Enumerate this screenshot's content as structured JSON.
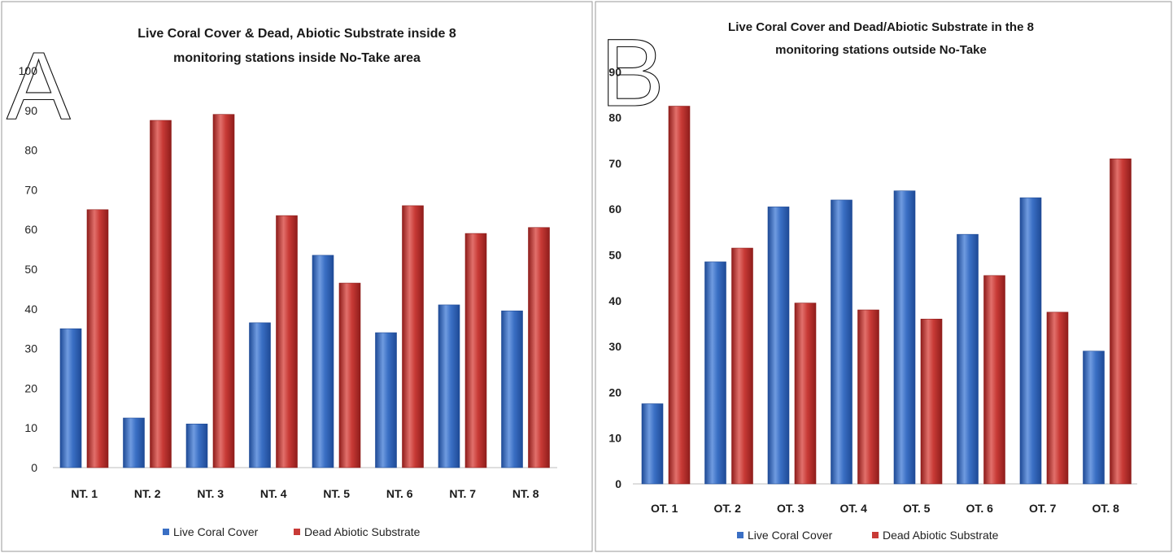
{
  "chart_data": [
    {
      "panel_label": "A",
      "type": "bar",
      "title": "Live Coral Cover & Dead, Abiotic Substrate inside 8 monitoring stations inside No-Take area",
      "title_lines": [
        "Live Coral Cover & Dead, Abiotic Substrate inside 8",
        "monitoring stations inside No-Take area"
      ],
      "categories": [
        "NT. 1",
        "NT. 2",
        "NT. 3",
        "NT. 4",
        "NT. 5",
        "NT. 6",
        "NT. 7",
        "NT. 8"
      ],
      "series": [
        {
          "name": "Live Coral Cover",
          "color": "#3a6fc4",
          "values": [
            35,
            12.5,
            11,
            36.5,
            53.5,
            34,
            41,
            39.5
          ]
        },
        {
          "name": "Dead Abiotic Substrate",
          "color": "#c83a36",
          "values": [
            65,
            87.5,
            89,
            63.5,
            46.5,
            66,
            59,
            60.5
          ]
        }
      ],
      "ylim": [
        0,
        100
      ],
      "yticks": [
        0,
        10,
        20,
        30,
        40,
        50,
        60,
        70,
        80,
        90,
        100
      ],
      "grid": false,
      "legend_position": "bottom"
    },
    {
      "panel_label": "B",
      "type": "bar",
      "title": "Live Coral Cover and Dead/Abiotic Substrate in the 8 monitoring stations outside No-Take",
      "title_lines": [
        "Live Coral Cover and Dead/Abiotic Substrate in the 8",
        "monitoring stations outside No-Take"
      ],
      "categories": [
        "OT. 1",
        "OT. 2",
        "OT. 3",
        "OT. 4",
        "OT. 5",
        "OT. 6",
        "OT. 7",
        "OT. 8"
      ],
      "series": [
        {
          "name": "Live Coral Cover",
          "color": "#3a6fc4",
          "values": [
            17.5,
            48.5,
            60.5,
            62,
            64,
            54.5,
            62.5,
            29
          ]
        },
        {
          "name": "Dead Abiotic Substrate",
          "color": "#c83a36",
          "values": [
            82.5,
            51.5,
            39.5,
            38,
            36,
            45.5,
            37.5,
            71
          ]
        }
      ],
      "ylim": [
        0,
        90
      ],
      "yticks": [
        0,
        10,
        20,
        30,
        40,
        50,
        60,
        70,
        80,
        90
      ],
      "grid": false,
      "legend_position": "bottom"
    }
  ]
}
